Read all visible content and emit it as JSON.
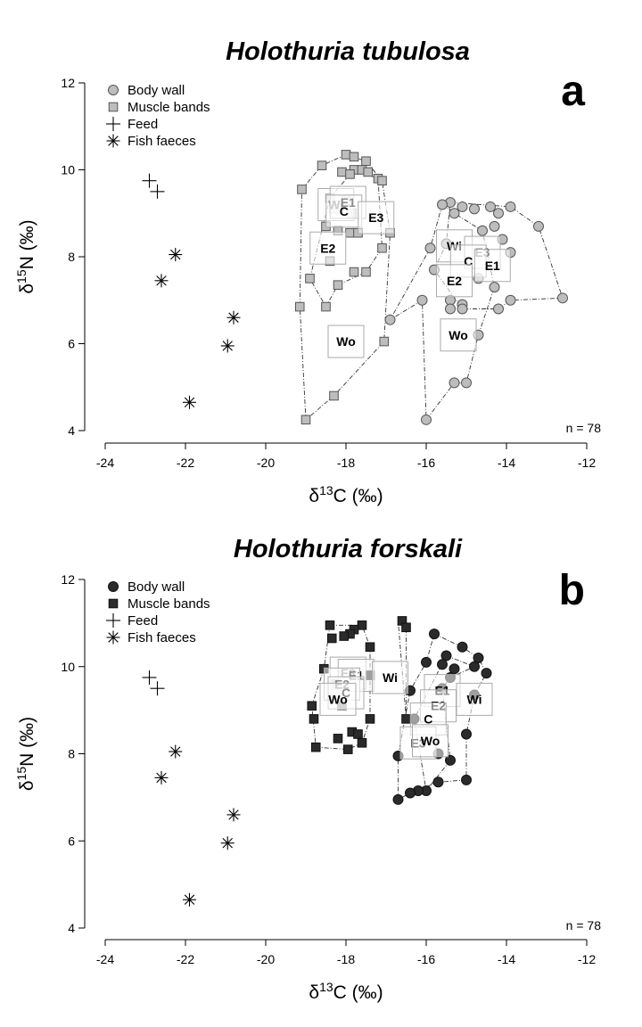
{
  "chart_data": [
    {
      "panel": "a",
      "type": "scatter",
      "title": "Holothuria tubulosa",
      "xlabel": "δ13C (‰)",
      "ylabel": "δ15N (‰)",
      "xlim": [
        -24,
        -12
      ],
      "ylim": [
        4,
        12
      ],
      "xticks": [
        -24,
        -22,
        -20,
        -18,
        -16,
        -14,
        -12
      ],
      "yticks": [
        4,
        6,
        8,
        10,
        12
      ],
      "n_label": "n = 78",
      "grid": false,
      "legend_position": "top-left",
      "legend": [
        "Body wall",
        "Muscle bands",
        "Feed",
        "Fish faeces"
      ],
      "series": [
        {
          "name": "Body wall",
          "marker": "circle",
          "color": "#bdbdbd",
          "points": [
            [
              -15.4,
              9.25
            ],
            [
              -15.6,
              9.2
            ],
            [
              -15.3,
              9.0
            ],
            [
              -15.1,
              9.15
            ],
            [
              -14.8,
              9.1
            ],
            [
              -14.4,
              9.15
            ],
            [
              -14.2,
              9.0
            ],
            [
              -13.9,
              9.15
            ],
            [
              -14.3,
              8.7
            ],
            [
              -14.6,
              8.6
            ],
            [
              -15.9,
              8.2
            ],
            [
              -15.5,
              8.3
            ],
            [
              -14.1,
              8.4
            ],
            [
              -13.2,
              8.7
            ],
            [
              -13.9,
              8.1
            ],
            [
              -15.8,
              7.7
            ],
            [
              -14.7,
              7.5
            ],
            [
              -14.3,
              7.3
            ],
            [
              -16.1,
              7.0
            ],
            [
              -15.4,
              7.0
            ],
            [
              -13.9,
              7.0
            ],
            [
              -12.6,
              7.05
            ],
            [
              -14.2,
              6.8
            ],
            [
              -15.4,
              6.8
            ],
            [
              -15.1,
              6.9
            ],
            [
              -15.1,
              6.8
            ],
            [
              -16.9,
              6.55
            ],
            [
              -14.7,
              6.2
            ],
            [
              -15.3,
              5.1
            ],
            [
              -15.0,
              5.1
            ],
            [
              -16.0,
              4.25
            ]
          ]
        },
        {
          "name": "Muscle bands",
          "marker": "square",
          "color": "#bdbdbd",
          "points": [
            [
              -18.0,
              10.35
            ],
            [
              -17.8,
              10.3
            ],
            [
              -17.5,
              10.2
            ],
            [
              -18.6,
              10.1
            ],
            [
              -17.8,
              10.0
            ],
            [
              -17.6,
              10.0
            ],
            [
              -18.1,
              9.95
            ],
            [
              -17.9,
              9.9
            ],
            [
              -17.45,
              9.95
            ],
            [
              -17.2,
              9.8
            ],
            [
              -17.1,
              9.75
            ],
            [
              -19.1,
              9.55
            ],
            [
              -18.4,
              9.35
            ],
            [
              -18.0,
              9.3
            ],
            [
              -18.3,
              9.1
            ],
            [
              -17.85,
              9.0
            ],
            [
              -18.5,
              8.7
            ],
            [
              -18.2,
              8.6
            ],
            [
              -17.9,
              8.55
            ],
            [
              -17.7,
              8.55
            ],
            [
              -16.9,
              8.55
            ],
            [
              -17.1,
              8.2
            ],
            [
              -18.4,
              7.9
            ],
            [
              -17.8,
              7.65
            ],
            [
              -17.5,
              7.65
            ],
            [
              -18.9,
              7.5
            ],
            [
              -18.2,
              7.35
            ],
            [
              -19.15,
              6.85
            ],
            [
              -18.5,
              6.85
            ],
            [
              -17.05,
              6.05
            ],
            [
              -18.3,
              4.8
            ],
            [
              -19.0,
              4.25
            ]
          ]
        },
        {
          "name": "Feed",
          "marker": "plus",
          "color": "#000000",
          "points": [
            [
              -22.9,
              9.75
            ],
            [
              -22.7,
              9.5
            ]
          ]
        },
        {
          "name": "Fish faeces",
          "marker": "asterisk",
          "color": "#000000",
          "points": [
            [
              -22.25,
              8.05
            ],
            [
              -22.6,
              7.45
            ],
            [
              -20.8,
              6.6
            ],
            [
              -20.95,
              5.95
            ],
            [
              -21.9,
              4.65
            ]
          ]
        }
      ],
      "hull_lines": [
        [
          [
            -19.1,
            9.55
          ],
          [
            -18.6,
            10.1
          ],
          [
            -18.0,
            10.35
          ],
          [
            -17.5,
            10.2
          ],
          [
            -17.1,
            9.75
          ],
          [
            -16.9,
            8.55
          ],
          [
            -17.05,
            6.05
          ],
          [
            -18.3,
            4.8
          ],
          [
            -19.0,
            4.25
          ],
          [
            -19.15,
            6.85
          ],
          [
            -19.1,
            9.55
          ]
        ],
        [
          [
            -18.4,
            9.35
          ],
          [
            -17.8,
            10.0
          ],
          [
            -17.2,
            9.8
          ],
          [
            -17.1,
            8.2
          ],
          [
            -17.5,
            7.65
          ],
          [
            -18.2,
            7.35
          ],
          [
            -18.5,
            6.85
          ],
          [
            -18.9,
            7.5
          ],
          [
            -18.4,
            9.35
          ]
        ],
        [
          [
            -15.6,
            9.2
          ],
          [
            -15.3,
            9.0
          ],
          [
            -14.6,
            8.6
          ],
          [
            -14.3,
            7.3
          ],
          [
            -14.7,
            6.2
          ],
          [
            -15.0,
            5.1
          ],
          [
            -15.3,
            5.1
          ],
          [
            -16.0,
            4.25
          ],
          [
            -16.1,
            7.0
          ],
          [
            -16.9,
            6.55
          ],
          [
            -15.9,
            8.2
          ],
          [
            -15.6,
            9.2
          ]
        ],
        [
          [
            -15.4,
            9.25
          ],
          [
            -13.9,
            9.15
          ],
          [
            -13.2,
            8.7
          ],
          [
            -12.6,
            7.05
          ],
          [
            -13.9,
            7.0
          ],
          [
            -14.2,
            6.8
          ],
          [
            -15.1,
            6.8
          ],
          [
            -15.8,
            7.7
          ],
          [
            -15.5,
            8.3
          ],
          [
            -15.4,
            9.25
          ]
        ]
      ],
      "labels": [
        {
          "text": "Wi",
          "x": -18.25,
          "y": 9.2
        },
        {
          "text": "E1",
          "x": -17.95,
          "y": 9.25
        },
        {
          "text": "C",
          "x": -18.05,
          "y": 9.05
        },
        {
          "text": "E3",
          "x": -17.25,
          "y": 8.9
        },
        {
          "text": "E2",
          "x": -18.45,
          "y": 8.2
        },
        {
          "text": "Wo",
          "x": -18.0,
          "y": 6.05
        },
        {
          "text": "Wi",
          "x": -15.3,
          "y": 8.25
        },
        {
          "text": "E3",
          "x": -14.6,
          "y": 8.1
        },
        {
          "text": "C",
          "x": -14.95,
          "y": 7.9
        },
        {
          "text": "E1",
          "x": -14.35,
          "y": 7.8
        },
        {
          "text": "E2",
          "x": -15.3,
          "y": 7.45
        },
        {
          "text": "Wo",
          "x": -15.2,
          "y": 6.2
        }
      ]
    },
    {
      "panel": "b",
      "type": "scatter",
      "title": "Holothuria forskali",
      "xlabel": "δ13C (‰)",
      "ylabel": "δ15N (‰)",
      "xlim": [
        -24,
        -12
      ],
      "ylim": [
        4,
        12
      ],
      "xticks": [
        -24,
        -22,
        -20,
        -18,
        -16,
        -14,
        -12
      ],
      "yticks": [
        4,
        6,
        8,
        10,
        12
      ],
      "n_label": "n = 78",
      "grid": false,
      "legend_position": "top-left",
      "legend": [
        "Body wall",
        "Muscle bands",
        "Feed",
        "Fish faeces"
      ],
      "series": [
        {
          "name": "Body wall",
          "marker": "circle",
          "color": "#2b2b2b",
          "points": [
            [
              -15.8,
              10.75
            ],
            [
              -15.1,
              10.45
            ],
            [
              -14.7,
              10.2
            ],
            [
              -15.5,
              10.25
            ],
            [
              -16.0,
              10.1
            ],
            [
              -15.6,
              10.05
            ],
            [
              -14.8,
              10.0
            ],
            [
              -15.3,
              9.95
            ],
            [
              -14.5,
              9.85
            ],
            [
              -15.4,
              9.75
            ],
            [
              -16.4,
              9.45
            ],
            [
              -15.6,
              9.5
            ],
            [
              -14.8,
              9.35
            ],
            [
              -16.3,
              8.8
            ],
            [
              -15.0,
              8.45
            ],
            [
              -16.7,
              7.95
            ],
            [
              -15.7,
              8.0
            ],
            [
              -15.4,
              7.85
            ],
            [
              -15.7,
              7.35
            ],
            [
              -15.0,
              7.4
            ],
            [
              -16.0,
              7.15
            ],
            [
              -16.2,
              7.15
            ],
            [
              -16.4,
              7.1
            ],
            [
              -16.7,
              6.95
            ]
          ]
        },
        {
          "name": "Muscle bands",
          "marker": "square",
          "color": "#2b2b2b",
          "points": [
            [
              -16.6,
              11.05
            ],
            [
              -16.5,
              10.9
            ],
            [
              -18.4,
              10.95
            ],
            [
              -17.6,
              10.95
            ],
            [
              -17.8,
              10.85
            ],
            [
              -17.9,
              10.75
            ],
            [
              -18.05,
              10.7
            ],
            [
              -18.35,
              10.65
            ],
            [
              -17.4,
              10.45
            ],
            [
              -18.55,
              9.95
            ],
            [
              -17.4,
              9.8
            ],
            [
              -18.25,
              9.6
            ],
            [
              -18.85,
              9.1
            ],
            [
              -18.1,
              9.1
            ],
            [
              -18.8,
              8.8
            ],
            [
              -17.4,
              8.8
            ],
            [
              -16.5,
              8.8
            ],
            [
              -17.85,
              8.5
            ],
            [
              -17.7,
              8.45
            ],
            [
              -18.2,
              8.35
            ],
            [
              -17.6,
              8.25
            ],
            [
              -18.75,
              8.15
            ],
            [
              -17.95,
              8.1
            ]
          ]
        },
        {
          "name": "Feed",
          "marker": "plus",
          "color": "#000000",
          "points": [
            [
              -22.9,
              9.75
            ],
            [
              -22.7,
              9.5
            ]
          ]
        },
        {
          "name": "Fish faeces",
          "marker": "asterisk",
          "color": "#000000",
          "points": [
            [
              -22.25,
              8.05
            ],
            [
              -22.6,
              7.45
            ],
            [
              -20.8,
              6.6
            ],
            [
              -20.95,
              5.95
            ],
            [
              -21.9,
              4.65
            ]
          ]
        }
      ],
      "hull_lines": [
        [
          [
            -18.4,
            10.95
          ],
          [
            -17.6,
            10.95
          ],
          [
            -17.4,
            10.45
          ],
          [
            -17.4,
            8.8
          ],
          [
            -17.6,
            8.25
          ],
          [
            -17.95,
            8.1
          ],
          [
            -18.75,
            8.15
          ],
          [
            -18.85,
            9.1
          ],
          [
            -18.55,
            9.95
          ],
          [
            -18.4,
            10.95
          ]
        ],
        [
          [
            -16.6,
            11.05
          ],
          [
            -16.5,
            10.9
          ],
          [
            -16.5,
            8.8
          ],
          [
            -16.7,
            11.05
          ],
          [
            -16.6,
            11.05
          ]
        ],
        [
          [
            -15.8,
            10.75
          ],
          [
            -15.1,
            10.45
          ],
          [
            -14.7,
            10.2
          ],
          [
            -14.5,
            9.85
          ],
          [
            -14.8,
            9.35
          ],
          [
            -15.0,
            8.45
          ],
          [
            -15.0,
            7.4
          ],
          [
            -15.7,
            7.35
          ],
          [
            -16.4,
            7.1
          ],
          [
            -16.7,
            6.95
          ],
          [
            -16.7,
            7.95
          ],
          [
            -16.4,
            9.45
          ],
          [
            -16.0,
            10.1
          ],
          [
            -15.8,
            10.75
          ]
        ],
        [
          [
            -15.5,
            10.25
          ],
          [
            -14.8,
            10.0
          ],
          [
            -15.4,
            9.75
          ],
          [
            -15.6,
            9.5
          ],
          [
            -15.4,
            7.85
          ],
          [
            -16.0,
            7.15
          ],
          [
            -16.3,
            8.8
          ],
          [
            -15.5,
            10.25
          ]
        ]
      ],
      "labels": [
        {
          "text": "E3",
          "x": -17.95,
          "y": 9.85
        },
        {
          "text": "E1",
          "x": -17.75,
          "y": 9.8
        },
        {
          "text": "E2",
          "x": -18.1,
          "y": 9.6
        },
        {
          "text": "C",
          "x": -18.0,
          "y": 9.4
        },
        {
          "text": "Wo",
          "x": -18.2,
          "y": 9.25
        },
        {
          "text": "Wi",
          "x": -16.9,
          "y": 9.75
        },
        {
          "text": "E1",
          "x": -15.6,
          "y": 9.45
        },
        {
          "text": "E2",
          "x": -15.7,
          "y": 9.1
        },
        {
          "text": "C",
          "x": -15.95,
          "y": 8.8
        },
        {
          "text": "Wi",
          "x": -14.8,
          "y": 9.25
        },
        {
          "text": "E3",
          "x": -16.2,
          "y": 8.25
        },
        {
          "text": "Wo",
          "x": -15.9,
          "y": 8.3
        }
      ]
    }
  ]
}
